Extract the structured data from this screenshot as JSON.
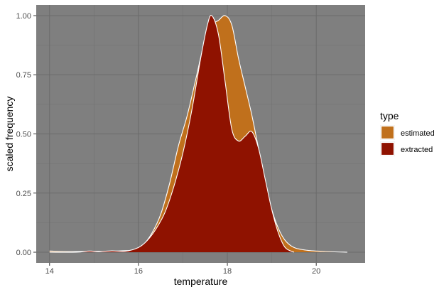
{
  "chart_data": {
    "type": "area",
    "xlabel": "temperature",
    "ylabel": "scaled frequency",
    "xlim": [
      13.7,
      21.1
    ],
    "ylim": [
      -0.045,
      1.045
    ],
    "x_ticks": [
      14,
      16,
      18,
      20
    ],
    "x_tick_labels": [
      "14",
      "16",
      "18",
      "20"
    ],
    "y_ticks": [
      0,
      0.25,
      0.5,
      0.75,
      1
    ],
    "y_tick_labels": [
      "0.00",
      "0.25",
      "0.50",
      "0.75",
      "1.00"
    ],
    "grid": true,
    "legend": {
      "title": "type",
      "position": "right"
    },
    "series": [
      {
        "name": "estimated",
        "color": "#c0701c",
        "points": [
          [
            14.0,
            0.005
          ],
          [
            14.5,
            0.003
          ],
          [
            15.0,
            0.004
          ],
          [
            15.3,
            0.003
          ],
          [
            15.6,
            0.006
          ],
          [
            15.9,
            0.01
          ],
          [
            16.1,
            0.03
          ],
          [
            16.3,
            0.08
          ],
          [
            16.5,
            0.16
          ],
          [
            16.7,
            0.29
          ],
          [
            16.9,
            0.45
          ],
          [
            17.1,
            0.58
          ],
          [
            17.3,
            0.74
          ],
          [
            17.5,
            0.9
          ],
          [
            17.65,
            0.96
          ],
          [
            17.8,
            0.98
          ],
          [
            17.95,
            1.0
          ],
          [
            18.1,
            0.96
          ],
          [
            18.25,
            0.82
          ],
          [
            18.4,
            0.7
          ],
          [
            18.55,
            0.58
          ],
          [
            18.7,
            0.44
          ],
          [
            18.85,
            0.3
          ],
          [
            19.0,
            0.18
          ],
          [
            19.15,
            0.1
          ],
          [
            19.3,
            0.05
          ],
          [
            19.5,
            0.02
          ],
          [
            19.8,
            0.008
          ],
          [
            20.2,
            0.003
          ],
          [
            20.7,
            0.0
          ]
        ]
      },
      {
        "name": "extracted",
        "color": "#8f1200",
        "points": [
          [
            14.0,
            0.0
          ],
          [
            14.6,
            0.0
          ],
          [
            14.9,
            0.005
          ],
          [
            15.1,
            0.002
          ],
          [
            15.4,
            0.006
          ],
          [
            15.7,
            0.004
          ],
          [
            16.0,
            0.02
          ],
          [
            16.2,
            0.05
          ],
          [
            16.4,
            0.1
          ],
          [
            16.6,
            0.17
          ],
          [
            16.8,
            0.28
          ],
          [
            17.0,
            0.42
          ],
          [
            17.2,
            0.6
          ],
          [
            17.4,
            0.82
          ],
          [
            17.55,
            0.96
          ],
          [
            17.65,
            1.0
          ],
          [
            17.8,
            0.92
          ],
          [
            17.95,
            0.72
          ],
          [
            18.1,
            0.52
          ],
          [
            18.25,
            0.47
          ],
          [
            18.4,
            0.49
          ],
          [
            18.55,
            0.51
          ],
          [
            18.7,
            0.44
          ],
          [
            18.85,
            0.31
          ],
          [
            19.0,
            0.18
          ],
          [
            19.15,
            0.08
          ],
          [
            19.3,
            0.02
          ],
          [
            19.5,
            0.0
          ]
        ]
      }
    ]
  }
}
